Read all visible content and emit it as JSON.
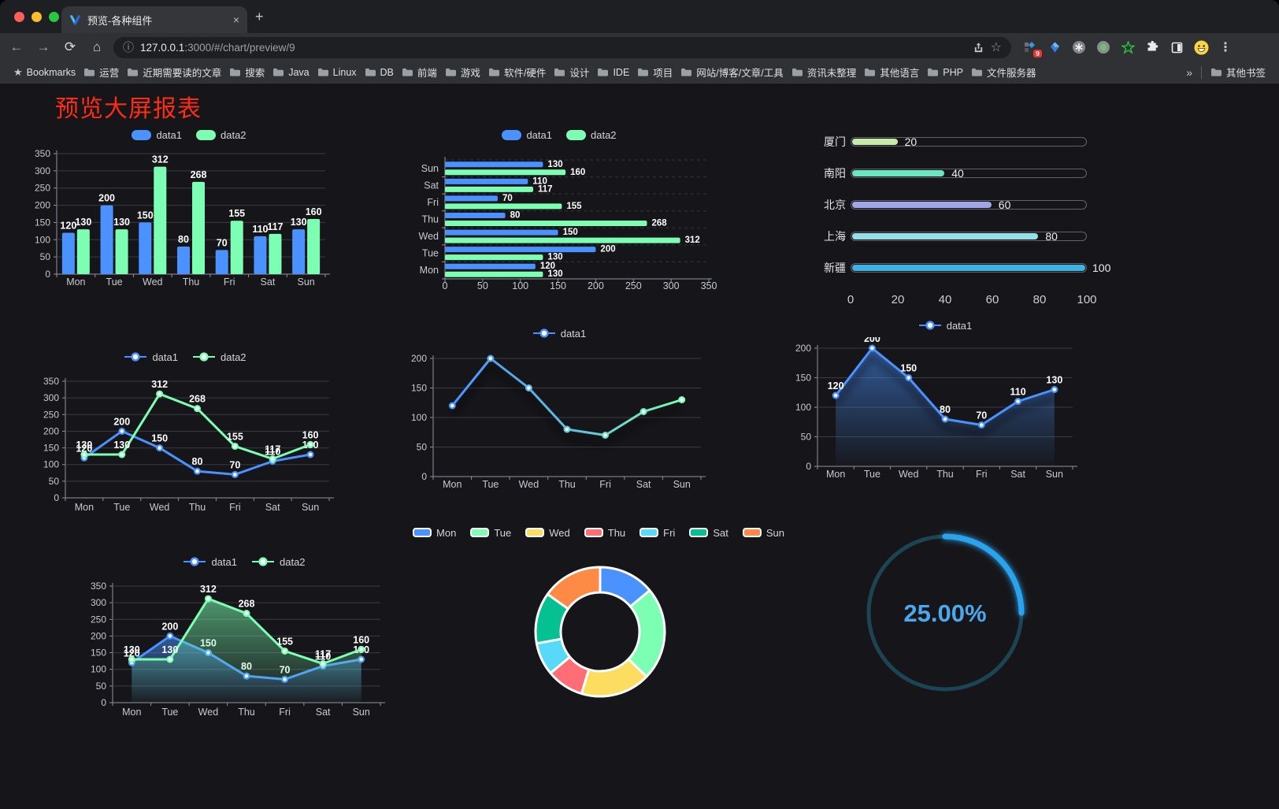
{
  "browser": {
    "tab_title": "预览-各种组件",
    "tab_close": "×",
    "new_tab": "+",
    "url_host": "127.0.0.1",
    "url_rest": ":3000/#/chart/preview/9",
    "extension_badge": "9",
    "bookmarks_label": "Bookmarks",
    "bookmarks": [
      "运营",
      "近期需要读的文章",
      "搜索",
      "Java",
      "Linux",
      "DB",
      "前端",
      "游戏",
      "软件/硬件",
      "设计",
      "IDE",
      "项目",
      "网站/博客/文章/工具",
      "资讯未整理",
      "其他语言",
      "PHP",
      "文件服务器"
    ],
    "bookmarks_overflow": "»",
    "other_bookmarks": "其他书签"
  },
  "page": {
    "title": "预览大屏报表",
    "title_color": "#fe2c14"
  },
  "chart_data": [
    {
      "id": "bar-grouped",
      "type": "bar",
      "categories": [
        "Mon",
        "Tue",
        "Wed",
        "Thu",
        "Fri",
        "Sat",
        "Sun"
      ],
      "series": [
        {
          "name": "data1",
          "color": "#4992ff",
          "values": [
            120,
            200,
            150,
            80,
            70,
            110,
            130
          ]
        },
        {
          "name": "data2",
          "color": "#7cffb2",
          "values": [
            130,
            130,
            312,
            268,
            155,
            117,
            160
          ]
        }
      ],
      "ylim": [
        0,
        350
      ],
      "yticks": [
        0,
        50,
        100,
        150,
        200,
        250,
        300,
        350
      ],
      "legend_position": "top",
      "grid": true
    },
    {
      "id": "bar-horizontal",
      "type": "bar",
      "orientation": "horizontal",
      "categories": [
        "Mon",
        "Tue",
        "Wed",
        "Thu",
        "Fri",
        "Sat",
        "Sun"
      ],
      "series": [
        {
          "name": "data1",
          "color": "#4992ff",
          "values": [
            120,
            200,
            150,
            80,
            70,
            110,
            130
          ]
        },
        {
          "name": "data2",
          "color": "#7cffb2",
          "values": [
            130,
            130,
            312,
            268,
            155,
            117,
            160
          ]
        }
      ],
      "xlim": [
        0,
        350
      ],
      "xticks": [
        0,
        50,
        100,
        150,
        200,
        250,
        300,
        350
      ]
    },
    {
      "id": "progress-bars",
      "type": "bar",
      "orientation": "horizontal",
      "items": [
        {
          "label": "厦门",
          "value": 20,
          "color": "#c4ebad"
        },
        {
          "label": "南阳",
          "value": 40,
          "color": "#6be6c1"
        },
        {
          "label": "北京",
          "value": 60,
          "color": "#a0a7e6"
        },
        {
          "label": "上海",
          "value": 80,
          "color": "#96dee8"
        },
        {
          "label": "新疆",
          "value": 100,
          "color": "#3fb1e3"
        }
      ],
      "xlim": [
        0,
        100
      ],
      "xticks": [
        0,
        20,
        40,
        60,
        80,
        100
      ]
    },
    {
      "id": "line-dual",
      "type": "line",
      "categories": [
        "Mon",
        "Tue",
        "Wed",
        "Thu",
        "Fri",
        "Sat",
        "Sun"
      ],
      "series": [
        {
          "name": "data1",
          "color": "#4992ff",
          "values": [
            120,
            200,
            150,
            80,
            70,
            110,
            130
          ]
        },
        {
          "name": "data2",
          "color": "#7cffb2",
          "values": [
            130,
            130,
            312,
            268,
            155,
            117,
            160
          ]
        }
      ],
      "ylim": [
        0,
        350
      ],
      "yticks": [
        0,
        50,
        100,
        150,
        200,
        250,
        300,
        350
      ],
      "show_labels": true
    },
    {
      "id": "line-gradient",
      "type": "line",
      "categories": [
        "Mon",
        "Tue",
        "Wed",
        "Thu",
        "Fri",
        "Sat",
        "Sun"
      ],
      "series": [
        {
          "name": "data1",
          "color": "#4992ff",
          "color_end": "#7cffb2",
          "values": [
            120,
            200,
            150,
            80,
            70,
            110,
            130
          ]
        }
      ],
      "ylim": [
        0,
        200
      ],
      "yticks": [
        0,
        50,
        100,
        150,
        200
      ],
      "show_labels": false
    },
    {
      "id": "area-single",
      "type": "area",
      "categories": [
        "Mon",
        "Tue",
        "Wed",
        "Thu",
        "Fri",
        "Sat",
        "Sun"
      ],
      "series": [
        {
          "name": "data1",
          "color": "#4992ff",
          "values": [
            120,
            200,
            150,
            80,
            70,
            110,
            130
          ]
        }
      ],
      "ylim": [
        0,
        200
      ],
      "yticks": [
        0,
        50,
        100,
        150,
        200
      ],
      "show_labels": true
    },
    {
      "id": "area-dual",
      "type": "area",
      "categories": [
        "Mon",
        "Tue",
        "Wed",
        "Thu",
        "Fri",
        "Sat",
        "Sun"
      ],
      "series": [
        {
          "name": "data1",
          "color": "#4992ff",
          "values": [
            120,
            200,
            150,
            80,
            70,
            110,
            130
          ]
        },
        {
          "name": "data2",
          "color": "#7cffb2",
          "values": [
            130,
            130,
            312,
            268,
            155,
            117,
            160
          ]
        }
      ],
      "ylim": [
        0,
        350
      ],
      "yticks": [
        0,
        50,
        100,
        150,
        200,
        250,
        300,
        350
      ],
      "show_labels": true
    },
    {
      "id": "doughnut",
      "type": "pie",
      "items": [
        {
          "name": "Mon",
          "value": 120,
          "color": "#4992ff"
        },
        {
          "name": "Tue",
          "value": 200,
          "color": "#7cffb2"
        },
        {
          "name": "Wed",
          "value": 150,
          "color": "#fddd60"
        },
        {
          "name": "Thu",
          "value": 80,
          "color": "#ff6e76"
        },
        {
          "name": "Fri",
          "value": 70,
          "color": "#58d9f9"
        },
        {
          "name": "Sat",
          "value": 110,
          "color": "#05c091"
        },
        {
          "name": "Sun",
          "value": 130,
          "color": "#ff8a45"
        }
      ],
      "legend_position": "top"
    },
    {
      "id": "gauge",
      "type": "gauge",
      "value": 25,
      "max": 100,
      "label": "25.00%",
      "color": "#2ba3ee",
      "track_color": "#1c4553",
      "text_color": "#4aa9ee"
    }
  ]
}
